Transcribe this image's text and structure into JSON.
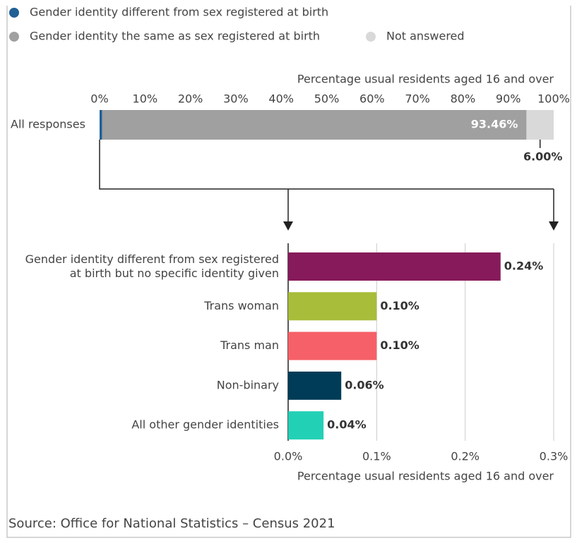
{
  "chart_data": [
    {
      "type": "stacked_bar",
      "orientation": "horizontal",
      "categories": [
        "All responses"
      ],
      "xlabel": "Percentage usual residents aged 16 and over",
      "xlim": [
        0,
        100
      ],
      "xticks": [
        {
          "value": 0,
          "label": "0%"
        },
        {
          "value": 10,
          "label": "10%"
        },
        {
          "value": 20,
          "label": "20%"
        },
        {
          "value": 30,
          "label": "30%"
        },
        {
          "value": 40,
          "label": "40%"
        },
        {
          "value": 50,
          "label": "50%"
        },
        {
          "value": 60,
          "label": "60%"
        },
        {
          "value": 70,
          "label": "70%"
        },
        {
          "value": 80,
          "label": "80%"
        },
        {
          "value": 90,
          "label": "90%"
        },
        {
          "value": 100,
          "label": "100%"
        }
      ],
      "series": [
        {
          "name": "Gender identity different from sex registered at birth",
          "color": "#206095",
          "values": [
            0.54
          ]
        },
        {
          "name": "Gender identity the same as sex registered at birth",
          "color": "#a0a0a0",
          "values": [
            93.46
          ],
          "value_labels": [
            "93.46%"
          ]
        },
        {
          "name": "Not answered",
          "color": "#d9d9d9",
          "values": [
            6.0
          ],
          "value_labels": [
            "6.00%"
          ]
        }
      ]
    },
    {
      "type": "bar",
      "orientation": "horizontal",
      "categories": [
        "Gender identity different from sex registered at birth but no specific identity given",
        "Trans woman",
        "Trans man",
        "Non-binary",
        "All other gender identities"
      ],
      "values": [
        0.24,
        0.1,
        0.1,
        0.06,
        0.04
      ],
      "value_labels": [
        "0.24%",
        "0.10%",
        "0.10%",
        "0.06%",
        "0.04%"
      ],
      "colors": [
        "#871a5b",
        "#a8bd3a",
        "#f66068",
        "#003c57",
        "#22d0b6"
      ],
      "xlabel": "Percentage usual residents aged 16 and over",
      "xlim": [
        0,
        0.3
      ],
      "xticks": [
        {
          "value": 0,
          "label": "0.0%"
        },
        {
          "value": 0.1,
          "label": "0.1%"
        },
        {
          "value": 0.2,
          "label": "0.2%"
        },
        {
          "value": 0.3,
          "label": "0.3%"
        }
      ],
      "grid": true
    }
  ],
  "source": "Source: Office for National Statistics – Census 2021"
}
